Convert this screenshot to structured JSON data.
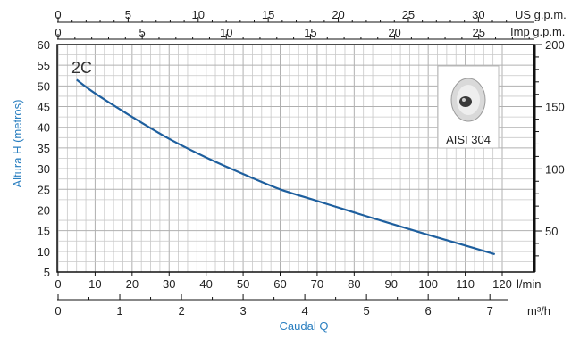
{
  "chart_data": {
    "type": "line",
    "curve_label": "2C",
    "ylabel": "Altura H (metros)",
    "xlabel": "Caudal Q",
    "y_left": {
      "min": 5,
      "max": 60,
      "ticks": [
        5,
        10,
        15,
        20,
        25,
        30,
        35,
        40,
        45,
        50,
        55,
        60
      ]
    },
    "y_right": {
      "ticks": [
        50,
        100,
        150,
        200
      ]
    },
    "x_lmin": {
      "unit": "l/min",
      "min": 0,
      "max": 120,
      "ticks": [
        0,
        10,
        20,
        30,
        40,
        50,
        60,
        70,
        80,
        90,
        100,
        110,
        120
      ]
    },
    "x_m3h": {
      "unit": "m³/h",
      "ticks": [
        0,
        1,
        2,
        3,
        4,
        5,
        6,
        7
      ]
    },
    "x_imp": {
      "unit": "Imp g.p.m.",
      "ticks": [
        0,
        5,
        10,
        15,
        20,
        25
      ]
    },
    "x_us": {
      "unit": "US g.p.m.",
      "ticks": [
        0,
        5,
        10,
        15,
        20,
        25,
        30
      ]
    },
    "series": [
      {
        "x": [
          5,
          10,
          20,
          30,
          40,
          50,
          60,
          70,
          80,
          90,
          100,
          110,
          118
        ],
        "y": [
          51.5,
          48.2,
          42.5,
          37.2,
          32.7,
          28.7,
          25.0,
          22.2,
          19.4,
          16.7,
          14.0,
          11.4,
          9.3
        ],
        "color": "#1e5f9e"
      }
    ],
    "grid": true
  },
  "badge": {
    "label": "AISI 304"
  }
}
